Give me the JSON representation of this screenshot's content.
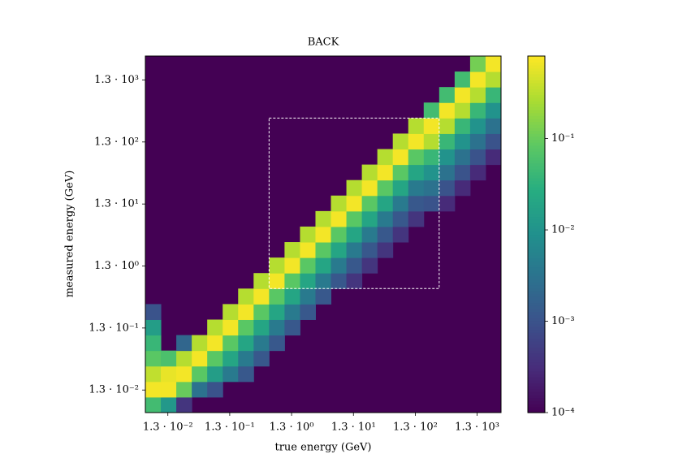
{
  "chart_data": {
    "type": "heatmap",
    "title": "BACK",
    "x_label": "true energy (GeV)",
    "y_label": "measured energy (GeV)",
    "log_x": true,
    "log_y": true,
    "colormap": "viridis",
    "log_color": true,
    "xlim": [
      0.005623,
      3162
    ],
    "ylim": [
      0.005623,
      3162
    ],
    "x_edges": [
      0.005623,
      0.01,
      0.01778,
      0.03162,
      0.05623,
      0.1,
      0.1778,
      0.3162,
      0.5623,
      1,
      1.778,
      3.162,
      5.623,
      10,
      17.78,
      31.62,
      56.23,
      100,
      177.8,
      316.2,
      562.3,
      1000,
      1778,
      3162
    ],
    "y_edges": [
      0.005623,
      0.01,
      0.01778,
      0.03162,
      0.05623,
      0.1,
      0.1778,
      0.3162,
      0.5623,
      1,
      1.778,
      3.162,
      5.623,
      10,
      17.78,
      31.62,
      56.23,
      100,
      177.8,
      316.2,
      562.3,
      1000,
      1778,
      3162
    ],
    "xticks": [
      {
        "value": 0.013,
        "label": "1.3 · 10⁻²"
      },
      {
        "value": 0.13,
        "label": "1.3 · 10⁻¹"
      },
      {
        "value": 1.3,
        "label": "1.3 · 10⁰"
      },
      {
        "value": 13,
        "label": "1.3 · 10¹"
      },
      {
        "value": 130,
        "label": "1.3 · 10²"
      },
      {
        "value": 1300,
        "label": "1.3 · 10³"
      }
    ],
    "yticks": [
      {
        "value": 0.013,
        "label": "1.3 · 10⁻²"
      },
      {
        "value": 0.13,
        "label": "1.3 · 10⁻¹"
      },
      {
        "value": 1.3,
        "label": "1.3 · 10⁰"
      },
      {
        "value": 13,
        "label": "1.3 · 10¹"
      },
      {
        "value": 130,
        "label": "1.3 · 10²"
      },
      {
        "value": 1300,
        "label": "1.3 · 10³"
      }
    ],
    "clim": [
      0.0001,
      0.8
    ],
    "cticks": [
      {
        "value": 0.0001,
        "label": "10⁻⁴"
      },
      {
        "value": 0.001,
        "label": "10⁻³"
      },
      {
        "value": 0.01,
        "label": "10⁻²"
      },
      {
        "value": 0.1,
        "label": "10⁻¹"
      }
    ],
    "box": {
      "x": [
        0.5623,
        316.2
      ],
      "y": [
        0.5623,
        316.2
      ],
      "color": "#ffffff"
    },
    "z": [
      [
        0.05,
        0.012,
        0.0004,
        null,
        null,
        null,
        null,
        null,
        null,
        null,
        null,
        null,
        null,
        null,
        null,
        null,
        null,
        null,
        null,
        null,
        null,
        null,
        null
      ],
      [
        0.7,
        0.7,
        0.1,
        0.003,
        0.001,
        null,
        null,
        null,
        null,
        null,
        null,
        null,
        null,
        null,
        null,
        null,
        null,
        null,
        null,
        null,
        null,
        null,
        null
      ],
      [
        0.35,
        0.6,
        0.7,
        0.08,
        0.015,
        0.004,
        0.0012,
        null,
        null,
        null,
        null,
        null,
        null,
        null,
        null,
        null,
        null,
        null,
        null,
        null,
        null,
        null,
        null
      ],
      [
        0.08,
        0.06,
        0.3,
        0.7,
        0.08,
        0.02,
        0.004,
        0.0012,
        null,
        null,
        null,
        null,
        null,
        null,
        null,
        null,
        null,
        null,
        null,
        null,
        null,
        null,
        null
      ],
      [
        0.04,
        null,
        0.002,
        0.3,
        0.7,
        0.08,
        0.02,
        0.004,
        0.0012,
        null,
        null,
        null,
        null,
        null,
        null,
        null,
        null,
        null,
        null,
        null,
        null,
        null,
        null
      ],
      [
        0.015,
        null,
        null,
        null,
        0.3,
        0.7,
        0.08,
        0.02,
        0.004,
        0.0012,
        null,
        null,
        null,
        null,
        null,
        null,
        null,
        null,
        null,
        null,
        null,
        null,
        null
      ],
      [
        0.001,
        null,
        null,
        null,
        null,
        0.3,
        0.7,
        0.08,
        0.02,
        0.004,
        0.0012,
        null,
        null,
        null,
        null,
        null,
        null,
        null,
        null,
        null,
        null,
        null,
        null
      ],
      [
        null,
        null,
        null,
        null,
        null,
        null,
        0.3,
        0.7,
        0.08,
        0.02,
        0.004,
        0.0012,
        null,
        null,
        null,
        null,
        null,
        null,
        null,
        null,
        null,
        null,
        null
      ],
      [
        null,
        null,
        null,
        null,
        null,
        null,
        null,
        0.3,
        0.7,
        0.08,
        0.02,
        0.004,
        0.0012,
        0.0004,
        null,
        null,
        null,
        null,
        null,
        null,
        null,
        null,
        null
      ],
      [
        null,
        null,
        null,
        null,
        null,
        null,
        null,
        null,
        0.3,
        0.7,
        0.08,
        0.02,
        0.004,
        0.0012,
        0.0004,
        null,
        null,
        null,
        null,
        null,
        null,
        null,
        null
      ],
      [
        null,
        null,
        null,
        null,
        null,
        null,
        null,
        null,
        null,
        0.3,
        0.7,
        0.08,
        0.02,
        0.004,
        0.0012,
        0.0004,
        null,
        null,
        null,
        null,
        null,
        null,
        null
      ],
      [
        null,
        null,
        null,
        null,
        null,
        null,
        null,
        null,
        null,
        null,
        0.3,
        0.7,
        0.08,
        0.02,
        0.004,
        0.0012,
        0.0004,
        null,
        null,
        null,
        null,
        null,
        null
      ],
      [
        null,
        null,
        null,
        null,
        null,
        null,
        null,
        null,
        null,
        null,
        null,
        0.3,
        0.7,
        0.08,
        0.02,
        0.004,
        0.0012,
        0.0004,
        null,
        null,
        null,
        null,
        null
      ],
      [
        null,
        null,
        null,
        null,
        null,
        null,
        null,
        null,
        null,
        null,
        null,
        null,
        0.3,
        0.7,
        0.08,
        0.02,
        0.004,
        0.0012,
        0.001,
        0.0003,
        null,
        null,
        null
      ],
      [
        null,
        null,
        null,
        null,
        null,
        null,
        null,
        null,
        null,
        null,
        null,
        null,
        null,
        0.3,
        0.7,
        0.08,
        0.02,
        0.004,
        0.003,
        0.001,
        0.0003,
        null,
        null
      ],
      [
        null,
        null,
        null,
        null,
        null,
        null,
        null,
        null,
        null,
        null,
        null,
        null,
        null,
        null,
        0.3,
        0.7,
        0.08,
        0.02,
        0.01,
        0.003,
        0.001,
        0.0003,
        null
      ],
      [
        null,
        null,
        null,
        null,
        null,
        null,
        null,
        null,
        null,
        null,
        null,
        null,
        null,
        null,
        null,
        0.3,
        0.7,
        0.08,
        0.04,
        0.01,
        0.003,
        0.001,
        0.0003
      ],
      [
        null,
        null,
        null,
        null,
        null,
        null,
        null,
        null,
        null,
        null,
        null,
        null,
        null,
        null,
        null,
        null,
        0.3,
        0.7,
        0.3,
        0.04,
        0.01,
        0.003,
        0.001
      ],
      [
        null,
        null,
        null,
        null,
        null,
        null,
        null,
        null,
        null,
        null,
        null,
        null,
        null,
        null,
        null,
        null,
        null,
        0.3,
        0.7,
        0.3,
        0.04,
        0.01,
        0.003
      ],
      [
        null,
        null,
        null,
        null,
        null,
        null,
        null,
        null,
        null,
        null,
        null,
        null,
        null,
        null,
        null,
        null,
        null,
        null,
        0.05,
        0.7,
        0.3,
        0.04,
        0.01
      ],
      [
        null,
        null,
        null,
        null,
        null,
        null,
        null,
        null,
        null,
        null,
        null,
        null,
        null,
        null,
        null,
        null,
        null,
        null,
        null,
        0.05,
        0.7,
        0.3,
        0.04
      ],
      [
        null,
        null,
        null,
        null,
        null,
        null,
        null,
        null,
        null,
        null,
        null,
        null,
        null,
        null,
        null,
        null,
        null,
        null,
        null,
        null,
        0.05,
        0.7,
        0.3
      ],
      [
        null,
        null,
        null,
        null,
        null,
        null,
        null,
        null,
        null,
        null,
        null,
        null,
        null,
        null,
        null,
        null,
        null,
        null,
        null,
        null,
        null,
        0.12,
        0.7
      ]
    ]
  }
}
